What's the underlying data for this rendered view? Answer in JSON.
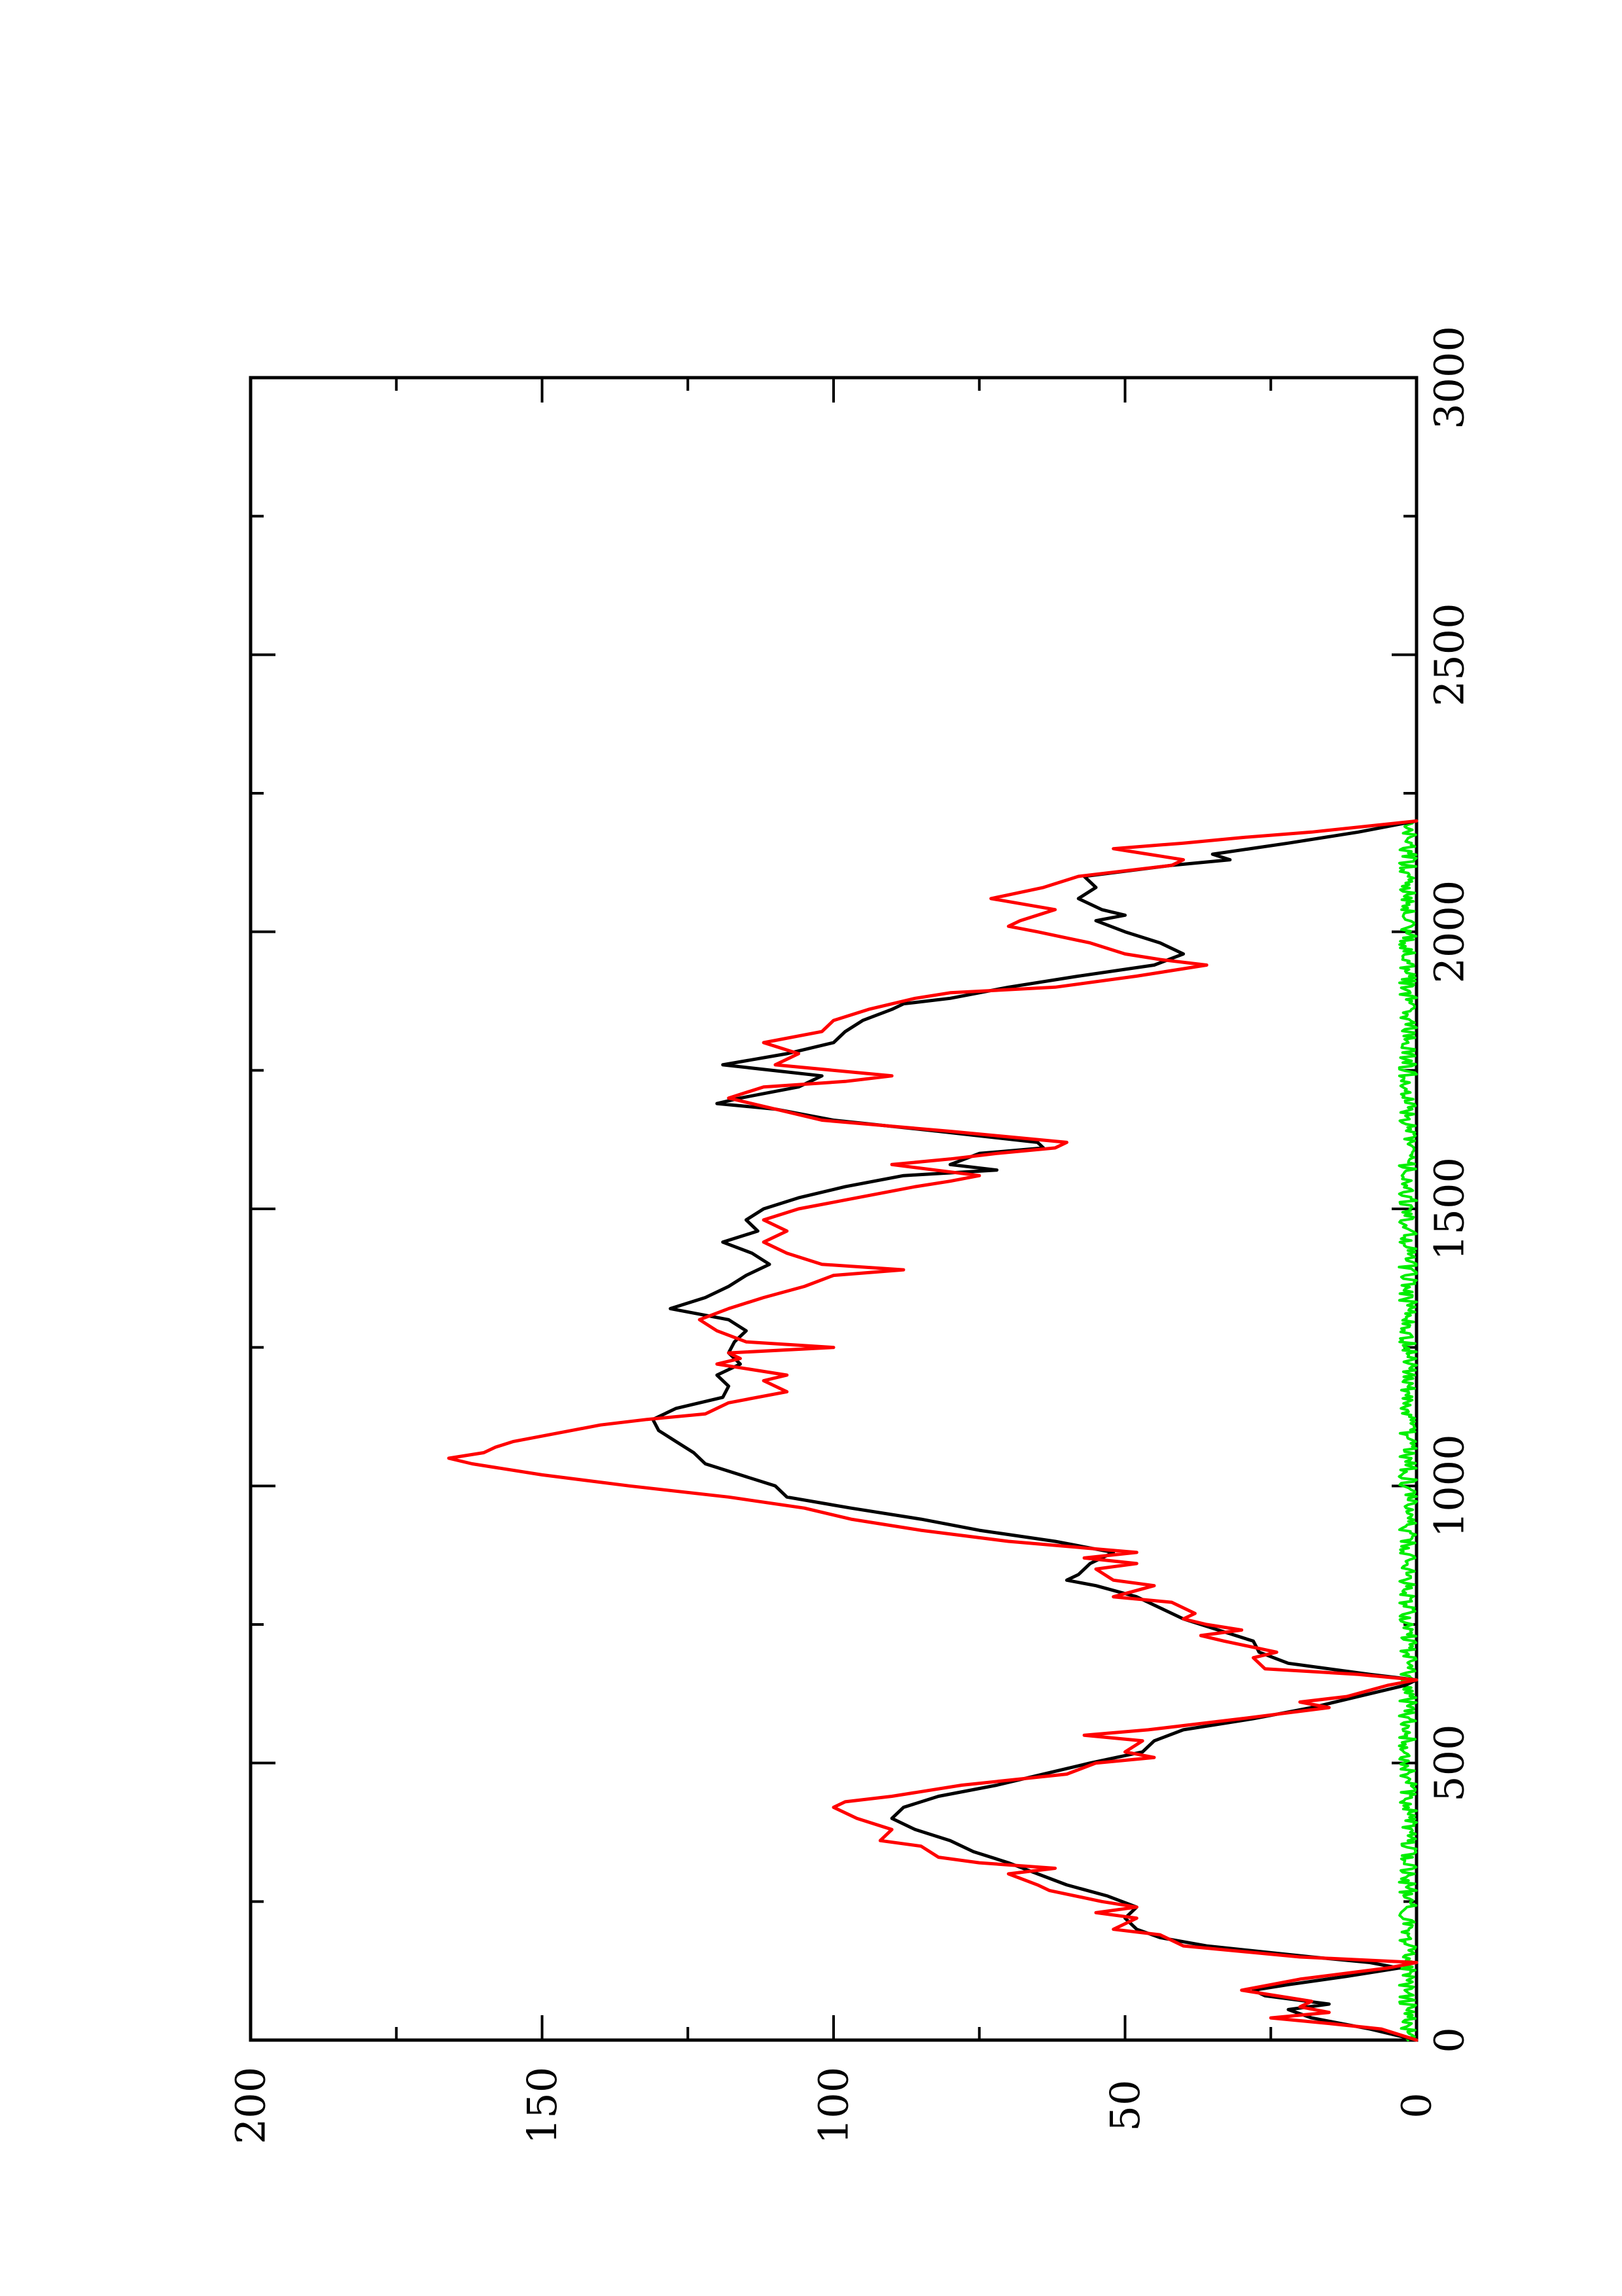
{
  "chart_data": {
    "type": "line",
    "orientation": "rotated-90-ccw",
    "title": "",
    "xlabel": "",
    "ylabel": "",
    "xlim": [
      0,
      3000
    ],
    "ylim": [
      0,
      200
    ],
    "x_major_ticks": [
      0,
      500,
      1000,
      1500,
      2000,
      2500,
      3000
    ],
    "x_major_tick_labels": [
      "0",
      "500",
      "1000",
      "1500",
      "2000",
      "2500",
      "3000"
    ],
    "x_minor_ticks": [
      250,
      750,
      1250,
      1750,
      2250,
      2750
    ],
    "y_major_ticks": [
      0,
      50,
      100,
      150,
      200
    ],
    "y_major_tick_labels": [
      "0",
      "50",
      "100",
      "150",
      "200"
    ],
    "y_minor_ticks": [
      25,
      75,
      125,
      175
    ],
    "grid": false,
    "legend": "none",
    "series": [
      {
        "color": "#000000",
        "points": [
          [
            0,
            0
          ],
          [
            20,
            8
          ],
          [
            40,
            18
          ],
          [
            55,
            22
          ],
          [
            65,
            15
          ],
          [
            80,
            26
          ],
          [
            90,
            28
          ],
          [
            100,
            22
          ],
          [
            115,
            12
          ],
          [
            130,
            3
          ],
          [
            140,
            8
          ],
          [
            150,
            18
          ],
          [
            170,
            36
          ],
          [
            185,
            44
          ],
          [
            200,
            48
          ],
          [
            220,
            50
          ],
          [
            240,
            48
          ],
          [
            260,
            53
          ],
          [
            280,
            60
          ],
          [
            300,
            65
          ],
          [
            320,
            70
          ],
          [
            340,
            76
          ],
          [
            360,
            80
          ],
          [
            380,
            86
          ],
          [
            400,
            90
          ],
          [
            420,
            88
          ],
          [
            440,
            82
          ],
          [
            460,
            72
          ],
          [
            480,
            64
          ],
          [
            500,
            56
          ],
          [
            520,
            47
          ],
          [
            540,
            45
          ],
          [
            560,
            40
          ],
          [
            580,
            28
          ],
          [
            600,
            18
          ],
          [
            620,
            10
          ],
          [
            640,
            2
          ],
          [
            650,
            0
          ],
          [
            660,
            8
          ],
          [
            680,
            22
          ],
          [
            700,
            27
          ],
          [
            720,
            28
          ],
          [
            740,
            34
          ],
          [
            760,
            40
          ],
          [
            780,
            44
          ],
          [
            800,
            48
          ],
          [
            820,
            55
          ],
          [
            830,
            60
          ],
          [
            840,
            58
          ],
          [
            860,
            56
          ],
          [
            880,
            52
          ],
          [
            900,
            62
          ],
          [
            920,
            75
          ],
          [
            940,
            85
          ],
          [
            960,
            97
          ],
          [
            980,
            108
          ],
          [
            1000,
            110
          ],
          [
            1020,
            116
          ],
          [
            1040,
            122
          ],
          [
            1060,
            124
          ],
          [
            1080,
            127
          ],
          [
            1100,
            130
          ],
          [
            1120,
            131
          ],
          [
            1140,
            127
          ],
          [
            1160,
            119
          ],
          [
            1180,
            118
          ],
          [
            1200,
            120
          ],
          [
            1220,
            116
          ],
          [
            1240,
            118
          ],
          [
            1260,
            117
          ],
          [
            1280,
            115
          ],
          [
            1300,
            118
          ],
          [
            1320,
            128
          ],
          [
            1340,
            122
          ],
          [
            1360,
            118
          ],
          [
            1380,
            115
          ],
          [
            1400,
            111
          ],
          [
            1420,
            114
          ],
          [
            1440,
            119
          ],
          [
            1460,
            113
          ],
          [
            1480,
            115
          ],
          [
            1500,
            112
          ],
          [
            1520,
            106
          ],
          [
            1540,
            98
          ],
          [
            1560,
            88
          ],
          [
            1570,
            72
          ],
          [
            1580,
            80
          ],
          [
            1600,
            75
          ],
          [
            1610,
            64
          ],
          [
            1620,
            65
          ],
          [
            1640,
            82
          ],
          [
            1660,
            100
          ],
          [
            1680,
            110
          ],
          [
            1690,
            120
          ],
          [
            1700,
            116
          ],
          [
            1720,
            106
          ],
          [
            1740,
            102
          ],
          [
            1760,
            119
          ],
          [
            1780,
            108
          ],
          [
            1800,
            100
          ],
          [
            1820,
            98
          ],
          [
            1840,
            95
          ],
          [
            1860,
            90
          ],
          [
            1870,
            88
          ],
          [
            1880,
            80
          ],
          [
            1900,
            70
          ],
          [
            1920,
            58
          ],
          [
            1940,
            45
          ],
          [
            1960,
            40
          ],
          [
            1980,
            44
          ],
          [
            2000,
            50
          ],
          [
            2020,
            55
          ],
          [
            2030,
            50
          ],
          [
            2040,
            54
          ],
          [
            2060,
            58
          ],
          [
            2080,
            55
          ],
          [
            2100,
            57
          ],
          [
            2120,
            42
          ],
          [
            2130,
            32
          ],
          [
            2140,
            35
          ],
          [
            2160,
            22
          ],
          [
            2180,
            10
          ],
          [
            2200,
            0
          ]
        ]
      },
      {
        "color": "#ff0000",
        "points": [
          [
            0,
            0
          ],
          [
            20,
            6
          ],
          [
            30,
            15
          ],
          [
            40,
            25
          ],
          [
            50,
            15
          ],
          [
            60,
            20
          ],
          [
            70,
            18
          ],
          [
            90,
            30
          ],
          [
            110,
            20
          ],
          [
            130,
            5
          ],
          [
            140,
            0
          ],
          [
            150,
            20
          ],
          [
            170,
            40
          ],
          [
            190,
            44
          ],
          [
            200,
            52
          ],
          [
            220,
            48
          ],
          [
            230,
            55
          ],
          [
            240,
            48
          ],
          [
            250,
            54
          ],
          [
            270,
            63
          ],
          [
            280,
            65
          ],
          [
            300,
            70
          ],
          [
            310,
            62
          ],
          [
            320,
            75
          ],
          [
            330,
            82
          ],
          [
            350,
            85
          ],
          [
            360,
            92
          ],
          [
            380,
            90
          ],
          [
            400,
            96
          ],
          [
            420,
            100
          ],
          [
            430,
            98
          ],
          [
            440,
            90
          ],
          [
            460,
            78
          ],
          [
            480,
            60
          ],
          [
            500,
            55
          ],
          [
            510,
            45
          ],
          [
            520,
            50
          ],
          [
            540,
            47
          ],
          [
            550,
            57
          ],
          [
            560,
            46
          ],
          [
            580,
            30
          ],
          [
            600,
            15
          ],
          [
            610,
            20
          ],
          [
            620,
            12
          ],
          [
            640,
            5
          ],
          [
            650,
            0
          ],
          [
            660,
            10
          ],
          [
            670,
            26
          ],
          [
            690,
            28
          ],
          [
            700,
            24
          ],
          [
            720,
            33
          ],
          [
            730,
            37
          ],
          [
            740,
            30
          ],
          [
            750,
            36
          ],
          [
            760,
            40
          ],
          [
            770,
            38
          ],
          [
            790,
            42
          ],
          [
            800,
            52
          ],
          [
            820,
            45
          ],
          [
            830,
            52
          ],
          [
            850,
            55
          ],
          [
            860,
            48
          ],
          [
            870,
            57
          ],
          [
            880,
            48
          ],
          [
            900,
            70
          ],
          [
            920,
            85
          ],
          [
            940,
            97
          ],
          [
            960,
            105
          ],
          [
            980,
            118
          ],
          [
            1000,
            135
          ],
          [
            1020,
            150
          ],
          [
            1040,
            162
          ],
          [
            1050,
            166
          ],
          [
            1060,
            160
          ],
          [
            1070,
            158
          ],
          [
            1080,
            155
          ],
          [
            1100,
            145
          ],
          [
            1110,
            140
          ],
          [
            1120,
            132
          ],
          [
            1130,
            122
          ],
          [
            1150,
            118
          ],
          [
            1170,
            108
          ],
          [
            1190,
            112
          ],
          [
            1200,
            108
          ],
          [
            1220,
            120
          ],
          [
            1230,
            116
          ],
          [
            1240,
            118
          ],
          [
            1250,
            100
          ],
          [
            1260,
            115
          ],
          [
            1280,
            120
          ],
          [
            1300,
            123
          ],
          [
            1320,
            118
          ],
          [
            1340,
            112
          ],
          [
            1360,
            105
          ],
          [
            1380,
            100
          ],
          [
            1390,
            88
          ],
          [
            1400,
            102
          ],
          [
            1420,
            108
          ],
          [
            1440,
            112
          ],
          [
            1460,
            108
          ],
          [
            1480,
            112
          ],
          [
            1500,
            106
          ],
          [
            1520,
            96
          ],
          [
            1540,
            86
          ],
          [
            1550,
            80
          ],
          [
            1560,
            75
          ],
          [
            1580,
            90
          ],
          [
            1590,
            80
          ],
          [
            1600,
            72
          ],
          [
            1610,
            62
          ],
          [
            1620,
            60
          ],
          [
            1640,
            80
          ],
          [
            1660,
            102
          ],
          [
            1680,
            110
          ],
          [
            1700,
            118
          ],
          [
            1720,
            112
          ],
          [
            1730,
            98
          ],
          [
            1740,
            90
          ],
          [
            1760,
            110
          ],
          [
            1770,
            108
          ],
          [
            1780,
            106
          ],
          [
            1800,
            112
          ],
          [
            1820,
            102
          ],
          [
            1840,
            100
          ],
          [
            1860,
            94
          ],
          [
            1880,
            86
          ],
          [
            1890,
            80
          ],
          [
            1900,
            62
          ],
          [
            1920,
            48
          ],
          [
            1940,
            36
          ],
          [
            1950,
            44
          ],
          [
            1960,
            50
          ],
          [
            1980,
            56
          ],
          [
            2000,
            65
          ],
          [
            2010,
            70
          ],
          [
            2020,
            68
          ],
          [
            2040,
            62
          ],
          [
            2060,
            73
          ],
          [
            2080,
            64
          ],
          [
            2100,
            58
          ],
          [
            2120,
            42
          ],
          [
            2130,
            40
          ],
          [
            2140,
            46
          ],
          [
            2150,
            52
          ],
          [
            2160,
            40
          ],
          [
            2170,
            30
          ],
          [
            2180,
            18
          ],
          [
            2200,
            0
          ]
        ]
      },
      {
        "color": "#00ee00",
        "band": [
          0,
          3
        ],
        "xrange": [
          0,
          2200
        ]
      }
    ]
  }
}
